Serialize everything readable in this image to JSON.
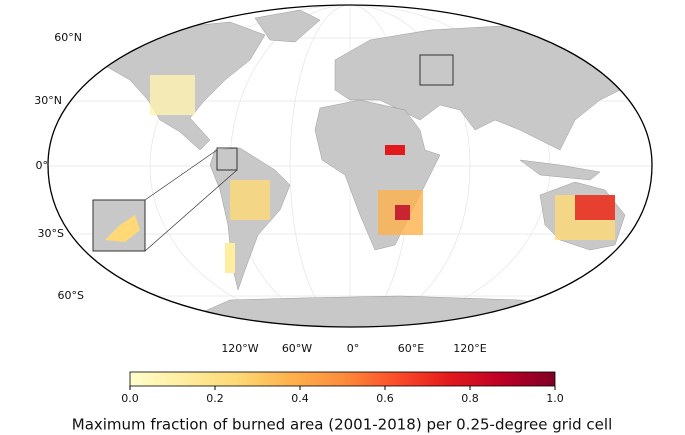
{
  "map": {
    "lat_labels": [
      "60°N",
      "30°N",
      "0°",
      "30°S",
      "60°S"
    ],
    "lon_labels": [
      "120°W",
      "60°W",
      "0°",
      "60°E",
      "120°E"
    ],
    "land_color": "#c8c8c8"
  },
  "colorbar": {
    "label": "Maximum fraction of burned area (2001-2018) per 0.25-degree grid cell",
    "range": [
      0,
      1
    ],
    "ticks": [
      {
        "value": 0,
        "label": "0.0"
      },
      0.2,
      0.4,
      0.6,
      0.8,
      {
        "value": 1,
        "label": "1.0"
      }
    ],
    "colors": [
      "#ffffcc",
      "#ffeda0",
      "#fed976",
      "#feb24c",
      "#fd8d3c",
      "#fc4e2a",
      "#e31a1c",
      "#bd0026",
      "#800026"
    ]
  }
}
